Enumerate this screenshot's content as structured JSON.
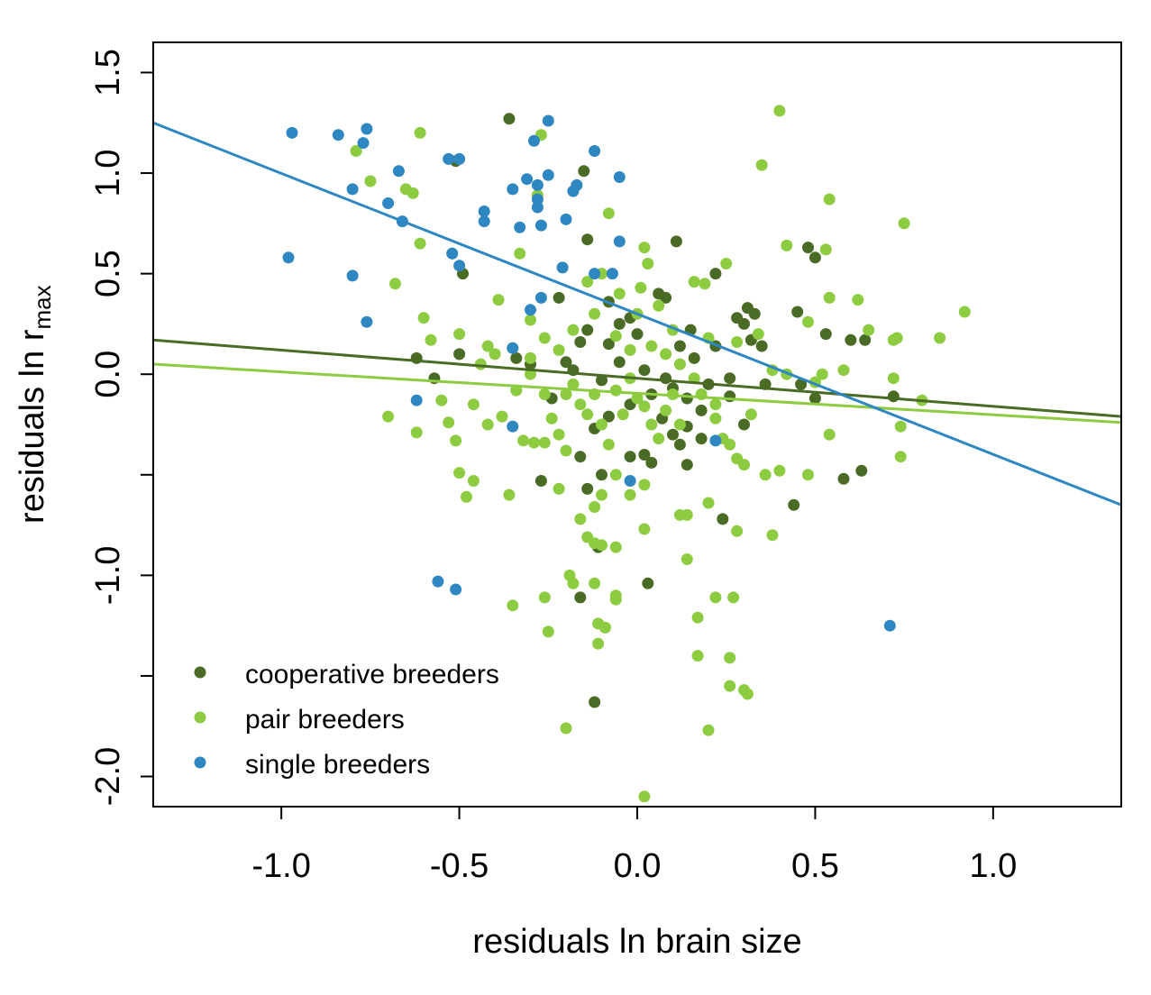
{
  "chart_data": {
    "type": "scatter",
    "xlabel": "residuals ln brain size",
    "ylabel": {
      "main": "residuals ln r",
      "sub": "max"
    },
    "xlim": [
      -1.36,
      1.36
    ],
    "ylim": [
      -2.15,
      1.65
    ],
    "xticks": [
      -1.0,
      -0.5,
      0.0,
      0.5,
      1.0
    ],
    "xtick_labels": [
      "-1.0",
      "-0.5",
      "0.0",
      "0.5",
      "1.0"
    ],
    "yticks": [
      -2.0,
      -1.5,
      -1.0,
      -0.5,
      0.0,
      0.5,
      1.0,
      1.5
    ],
    "ytick_labels": [
      "-2.0",
      "",
      "-1.0",
      "",
      "0.0",
      "0.5",
      "1.0",
      "1.5"
    ],
    "grid": false,
    "legend_position": "bottom-left",
    "series": [
      {
        "name": "cooperative breeders",
        "color": "#4a6b25",
        "points": [
          [
            -0.36,
            1.27
          ],
          [
            -0.15,
            1.01
          ],
          [
            -0.51,
            1.06
          ],
          [
            -0.49,
            0.5
          ],
          [
            -0.14,
            0.67
          ],
          [
            0.11,
            0.66
          ],
          [
            0.48,
            0.63
          ],
          [
            0.5,
            0.58
          ],
          [
            0.22,
            0.5
          ],
          [
            -0.22,
            0.38
          ],
          [
            -0.08,
            0.36
          ],
          [
            0.06,
            0.4
          ],
          [
            0.08,
            0.38
          ],
          [
            0.31,
            0.33
          ],
          [
            0.33,
            0.3
          ],
          [
            0.28,
            0.28
          ],
          [
            0.3,
            0.25
          ],
          [
            0.45,
            0.31
          ],
          [
            0.53,
            0.2
          ],
          [
            0.6,
            0.17
          ],
          [
            0.64,
            0.17
          ],
          [
            0.35,
            0.14
          ],
          [
            0.15,
            0.22
          ],
          [
            -0.02,
            0.28
          ],
          [
            -0.05,
            0.25
          ],
          [
            0.0,
            0.2
          ],
          [
            -0.14,
            0.22
          ],
          [
            -0.34,
            0.08
          ],
          [
            -0.62,
            0.08
          ],
          [
            -0.57,
            -0.02
          ],
          [
            -0.5,
            0.1
          ],
          [
            -0.3,
            0.05
          ],
          [
            -0.18,
            0.02
          ],
          [
            -0.1,
            -0.03
          ],
          [
            -0.05,
            0.06
          ],
          [
            0.02,
            0.02
          ],
          [
            0.08,
            -0.02
          ],
          [
            0.1,
            -0.07
          ],
          [
            0.14,
            -0.12
          ],
          [
            0.2,
            -0.05
          ],
          [
            0.26,
            -0.11
          ],
          [
            0.36,
            -0.05
          ],
          [
            0.18,
            -0.18
          ],
          [
            0.14,
            -0.26
          ],
          [
            0.12,
            -0.35
          ],
          [
            0.1,
            -0.3
          ],
          [
            0.07,
            -0.22
          ],
          [
            0.04,
            -0.1
          ],
          [
            -0.02,
            -0.15
          ],
          [
            -0.08,
            -0.21
          ],
          [
            -0.12,
            -0.27
          ],
          [
            0.02,
            -0.4
          ],
          [
            0.04,
            -0.44
          ],
          [
            -0.02,
            -0.41
          ],
          [
            -0.1,
            -0.5
          ],
          [
            -0.16,
            -0.41
          ],
          [
            -0.27,
            -0.53
          ],
          [
            -0.14,
            -0.57
          ],
          [
            0.14,
            -0.45
          ],
          [
            0.24,
            -0.72
          ],
          [
            0.44,
            -0.65
          ],
          [
            0.58,
            -0.52
          ],
          [
            0.63,
            -0.48
          ],
          [
            0.72,
            -0.11
          ],
          [
            0.03,
            -1.04
          ],
          [
            -0.11,
            -0.86
          ],
          [
            -0.16,
            -1.11
          ],
          [
            -0.12,
            -1.63
          ],
          [
            -0.16,
            0.16
          ],
          [
            -0.08,
            0.15
          ],
          [
            0.12,
            0.14
          ],
          [
            0.16,
            0.08
          ],
          [
            0.22,
            0.14
          ],
          [
            0.32,
            0.17
          ],
          [
            0.26,
            -0.02
          ],
          [
            -0.24,
            -0.12
          ],
          [
            -0.2,
            0.06
          ],
          [
            0.18,
            -0.32
          ],
          [
            0.3,
            -0.25
          ],
          [
            0.46,
            -0.05
          ],
          [
            0.5,
            -0.12
          ]
        ]
      },
      {
        "name": "pair breeders",
        "color": "#8dcb41",
        "points": [
          [
            0.4,
            1.31
          ],
          [
            -0.61,
            1.2
          ],
          [
            -0.27,
            1.19
          ],
          [
            -0.79,
            1.11
          ],
          [
            -0.75,
            0.96
          ],
          [
            -0.65,
            0.92
          ],
          [
            -0.63,
            0.9
          ],
          [
            -0.28,
            0.89
          ],
          [
            0.35,
            1.04
          ],
          [
            0.54,
            0.87
          ],
          [
            0.75,
            0.75
          ],
          [
            -0.08,
            0.8
          ],
          [
            -0.61,
            0.65
          ],
          [
            -0.52,
            0.6
          ],
          [
            -0.33,
            0.6
          ],
          [
            0.42,
            0.64
          ],
          [
            0.53,
            0.62
          ],
          [
            0.62,
            0.37
          ],
          [
            0.92,
            0.31
          ],
          [
            -0.68,
            0.45
          ],
          [
            -0.6,
            0.28
          ],
          [
            -0.39,
            0.37
          ],
          [
            -0.3,
            0.27
          ],
          [
            0.02,
            0.63
          ],
          [
            0.03,
            0.55
          ],
          [
            0.16,
            0.46
          ],
          [
            0.25,
            0.55
          ],
          [
            0.19,
            0.45
          ],
          [
            -0.14,
            0.46
          ],
          [
            -0.1,
            0.5
          ],
          [
            -0.05,
            0.4
          ],
          [
            0.01,
            0.43
          ],
          [
            0.54,
            0.38
          ],
          [
            0.48,
            0.26
          ],
          [
            0.65,
            0.22
          ],
          [
            0.73,
            0.18
          ],
          [
            0.72,
            0.17
          ],
          [
            0.85,
            0.18
          ],
          [
            -0.5,
            0.2
          ],
          [
            -0.58,
            0.17
          ],
          [
            -0.42,
            0.14
          ],
          [
            -0.4,
            0.1
          ],
          [
            -0.35,
            0.13
          ],
          [
            -0.44,
            0.05
          ],
          [
            -0.3,
            0.08
          ],
          [
            -0.26,
            0.18
          ],
          [
            -0.22,
            0.12
          ],
          [
            -0.18,
            0.22
          ],
          [
            -0.12,
            0.3
          ],
          [
            -0.06,
            0.19
          ],
          [
            0.04,
            0.14
          ],
          [
            0.08,
            0.1
          ],
          [
            0.12,
            0.05
          ],
          [
            0.2,
            0.18
          ],
          [
            0.28,
            0.16
          ],
          [
            0.34,
            0.2
          ],
          [
            0.38,
            0.02
          ],
          [
            0.42,
            0.0
          ],
          [
            0.5,
            -0.04
          ],
          [
            0.52,
            0.0
          ],
          [
            0.58,
            0.02
          ],
          [
            0.72,
            -0.02
          ],
          [
            0.74,
            -0.26
          ],
          [
            0.74,
            -0.41
          ],
          [
            0.8,
            -0.13
          ],
          [
            -0.7,
            -0.21
          ],
          [
            -0.62,
            -0.29
          ],
          [
            -0.55,
            -0.13
          ],
          [
            -0.53,
            -0.24
          ],
          [
            -0.51,
            -0.33
          ],
          [
            -0.5,
            -0.49
          ],
          [
            -0.46,
            -0.15
          ],
          [
            -0.42,
            -0.25
          ],
          [
            -0.38,
            -0.21
          ],
          [
            -0.34,
            -0.08
          ],
          [
            -0.32,
            -0.33
          ],
          [
            -0.29,
            -0.34
          ],
          [
            -0.26,
            -0.34
          ],
          [
            -0.24,
            -0.22
          ],
          [
            -0.22,
            -0.3
          ],
          [
            -0.2,
            -0.38
          ],
          [
            -0.18,
            -0.05
          ],
          [
            -0.16,
            -0.15
          ],
          [
            -0.14,
            -0.2
          ],
          [
            -0.12,
            -0.1
          ],
          [
            -0.1,
            -0.25
          ],
          [
            -0.08,
            -0.35
          ],
          [
            -0.06,
            -0.08
          ],
          [
            -0.04,
            -0.2
          ],
          [
            -0.02,
            -0.02
          ],
          [
            0.0,
            -0.12
          ],
          [
            0.02,
            -0.16
          ],
          [
            0.04,
            -0.25
          ],
          [
            0.06,
            -0.32
          ],
          [
            0.08,
            -0.18
          ],
          [
            0.1,
            -0.1
          ],
          [
            0.16,
            -0.02
          ],
          [
            0.18,
            -0.1
          ],
          [
            0.22,
            -0.22
          ],
          [
            0.24,
            -0.32
          ],
          [
            0.26,
            -0.35
          ],
          [
            0.28,
            -0.42
          ],
          [
            0.3,
            -0.45
          ],
          [
            0.36,
            -0.5
          ],
          [
            0.4,
            -0.48
          ],
          [
            0.48,
            -0.5
          ],
          [
            0.54,
            -0.3
          ],
          [
            -0.48,
            -0.61
          ],
          [
            -0.46,
            -0.53
          ],
          [
            -0.36,
            -0.6
          ],
          [
            -0.22,
            -0.57
          ],
          [
            -0.16,
            -0.72
          ],
          [
            -0.12,
            -0.66
          ],
          [
            -0.1,
            -0.6
          ],
          [
            -0.06,
            -0.5
          ],
          [
            -0.02,
            -0.6
          ],
          [
            0.02,
            -0.55
          ],
          [
            0.12,
            -0.7
          ],
          [
            0.14,
            -0.7
          ],
          [
            0.2,
            -0.64
          ],
          [
            -0.14,
            -0.81
          ],
          [
            -0.12,
            -0.84
          ],
          [
            -0.1,
            -0.85
          ],
          [
            -0.06,
            -0.86
          ],
          [
            0.02,
            -0.77
          ],
          [
            0.14,
            -0.92
          ],
          [
            0.28,
            -0.78
          ],
          [
            0.38,
            -0.8
          ],
          [
            -0.35,
            -1.15
          ],
          [
            -0.26,
            -1.11
          ],
          [
            -0.19,
            -1.0
          ],
          [
            -0.18,
            -1.04
          ],
          [
            -0.12,
            -1.04
          ],
          [
            -0.06,
            -1.1
          ],
          [
            -0.06,
            -1.12
          ],
          [
            -0.25,
            -1.28
          ],
          [
            -0.11,
            -1.24
          ],
          [
            -0.09,
            -1.26
          ],
          [
            -0.11,
            -1.34
          ],
          [
            0.17,
            -1.21
          ],
          [
            0.22,
            -1.11
          ],
          [
            0.27,
            -1.11
          ],
          [
            0.17,
            -1.4
          ],
          [
            0.26,
            -1.41
          ],
          [
            0.26,
            -1.55
          ],
          [
            0.3,
            -1.57
          ],
          [
            0.31,
            -1.59
          ],
          [
            -0.2,
            -1.76
          ],
          [
            0.2,
            -1.77
          ],
          [
            0.02,
            -2.1
          ],
          [
            -0.3,
            0.0
          ],
          [
            0.1,
            0.22
          ],
          [
            -0.26,
            -0.1
          ],
          [
            0.0,
            0.3
          ],
          [
            0.06,
            0.34
          ],
          [
            -0.02,
            0.12
          ],
          [
            0.22,
            -0.15
          ],
          [
            -0.2,
            -0.1
          ],
          [
            0.12,
            -0.25
          ],
          [
            0.32,
            -0.2
          ]
        ]
      },
      {
        "name": "single breeders",
        "color": "#2f87c2",
        "points": [
          [
            -0.97,
            1.2
          ],
          [
            -0.84,
            1.19
          ],
          [
            -0.76,
            1.22
          ],
          [
            -0.77,
            1.15
          ],
          [
            -0.25,
            1.26
          ],
          [
            -0.29,
            1.16
          ],
          [
            -0.12,
            1.11
          ],
          [
            -0.53,
            1.07
          ],
          [
            -0.5,
            1.07
          ],
          [
            -0.67,
            1.01
          ],
          [
            -0.7,
            0.85
          ],
          [
            -0.8,
            0.92
          ],
          [
            -0.35,
            0.92
          ],
          [
            -0.31,
            0.97
          ],
          [
            -0.28,
            0.94
          ],
          [
            -0.25,
            0.99
          ],
          [
            -0.18,
            0.91
          ],
          [
            -0.17,
            0.94
          ],
          [
            -0.05,
            0.98
          ],
          [
            -0.43,
            0.81
          ],
          [
            -0.43,
            0.76
          ],
          [
            -0.66,
            0.76
          ],
          [
            -0.33,
            0.73
          ],
          [
            -0.28,
            0.87
          ],
          [
            -0.28,
            0.83
          ],
          [
            -0.2,
            0.77
          ],
          [
            -0.27,
            0.74
          ],
          [
            -0.52,
            0.6
          ],
          [
            -0.98,
            0.58
          ],
          [
            -0.5,
            0.54
          ],
          [
            -0.21,
            0.53
          ],
          [
            -0.12,
            0.5
          ],
          [
            -0.07,
            0.5
          ],
          [
            -0.05,
            0.66
          ],
          [
            -0.8,
            0.49
          ],
          [
            -0.76,
            0.26
          ],
          [
            -0.3,
            0.32
          ],
          [
            -0.35,
            0.13
          ],
          [
            -0.62,
            -0.13
          ],
          [
            -0.35,
            -0.26
          ],
          [
            -0.56,
            -1.03
          ],
          [
            -0.51,
            -1.07
          ],
          [
            0.71,
            -1.25
          ],
          [
            0.22,
            -0.33
          ],
          [
            -0.02,
            -0.53
          ],
          [
            -0.27,
            0.38
          ]
        ]
      }
    ],
    "regression_lines": [
      {
        "series": "cooperative breeders",
        "color": "#4a6b25",
        "x": [
          -1.36,
          1.36
        ],
        "y": [
          0.17,
          -0.21
        ]
      },
      {
        "series": "pair breeders",
        "color": "#8dcb41",
        "x": [
          -1.36,
          1.36
        ],
        "y": [
          0.05,
          -0.24
        ]
      },
      {
        "series": "single breeders",
        "color": "#2f87c2",
        "x": [
          -1.36,
          1.36
        ],
        "y": [
          1.25,
          -0.65
        ]
      }
    ]
  }
}
